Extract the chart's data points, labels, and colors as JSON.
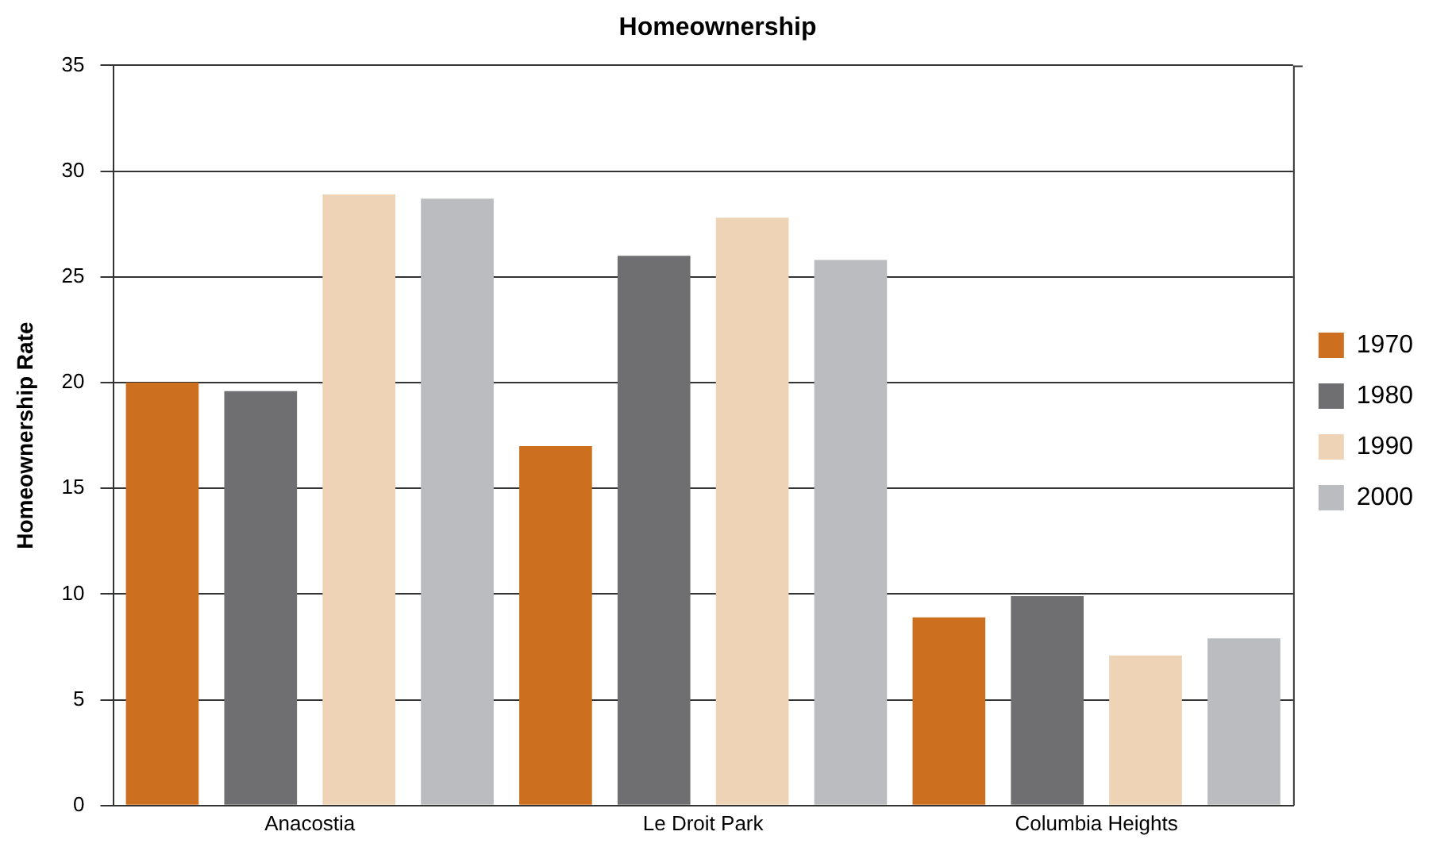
{
  "chart_data": {
    "type": "bar",
    "title": "Homeownership",
    "ylabel": "Homeownership Rate",
    "categories": [
      "Anacostia",
      "Le Droit Park",
      "Columbia Heights"
    ],
    "series": [
      {
        "name": "1970",
        "color": "#cc6f1e",
        "values": [
          20.0,
          17.0,
          8.9
        ]
      },
      {
        "name": "1980",
        "color": "#6f6f71",
        "values": [
          19.6,
          26.0,
          9.9
        ]
      },
      {
        "name": "1990",
        "color": "#efd3b7",
        "values": [
          28.9,
          27.8,
          7.1
        ]
      },
      {
        "name": "2000",
        "color": "#bbbcc0",
        "values": [
          28.7,
          25.8,
          7.9
        ]
      }
    ],
    "ylim": [
      0,
      35
    ],
    "yticks": [
      0,
      5,
      10,
      15,
      20,
      25,
      30,
      35
    ],
    "grid": "y",
    "legend": "right"
  }
}
